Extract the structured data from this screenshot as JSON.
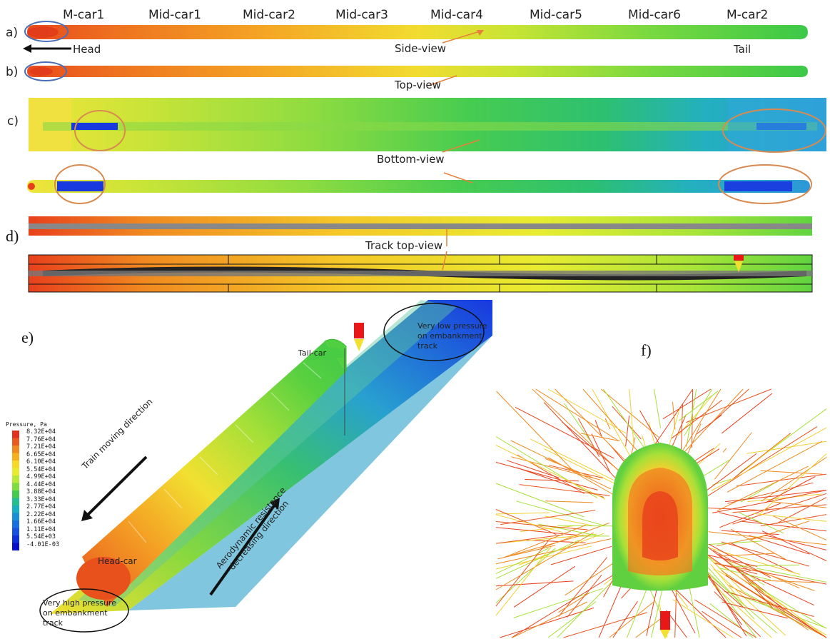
{
  "panels": {
    "a": "a)",
    "b": "b)",
    "c": "c)",
    "d": "d)",
    "e": "e)",
    "f": "f)"
  },
  "cars": [
    "M-car1",
    "Mid-car1",
    "Mid-car2",
    "Mid-car3",
    "Mid-car4",
    "Mid-car5",
    "Mid-car6",
    "M-car2"
  ],
  "labels": {
    "head": "Head",
    "tail": "Tail",
    "side_view": "Side-view",
    "top_view": "Top-view",
    "bottom_view": "Bottom-view",
    "track_top_view": "Track top-view",
    "tail_car": "Tail-car",
    "head_car": "Head-car",
    "train_moving": "Train moving direction",
    "aero_line1": "Aerodynamic resistance",
    "aero_line2": "decreasing direction",
    "low_pressure_1": "Very low pressure",
    "low_pressure_2": "on embankment",
    "low_pressure_3": "track",
    "high_pressure_1": "Very high pressure",
    "high_pressure_2": "on embankment",
    "high_pressure_3": "track"
  },
  "legend": {
    "title": "Pressure, Pa",
    "values": [
      "8.32E+04",
      "7.76E+04",
      "7.21E+04",
      "6.65E+04",
      "6.10E+04",
      "5.54E+04",
      "4.99E+04",
      "4.44E+04",
      "3.88E+04",
      "3.33E+04",
      "2.77E+04",
      "2.22E+04",
      "1.66E+04",
      "1.11E+04",
      "5.54E+03",
      "-4.01E-03"
    ],
    "colors": [
      "#e03020",
      "#e85a20",
      "#f08a20",
      "#f5b020",
      "#f5d828",
      "#e8ec30",
      "#b8e838",
      "#7fdc40",
      "#44cc50",
      "#22c090",
      "#18b0c0",
      "#1890d8",
      "#1870e0",
      "#1850e0",
      "#1030d8",
      "#0a10c8"
    ]
  },
  "colors": {
    "red": "#e8401c",
    "orange": "#f08a20",
    "yellow": "#f2e030",
    "green": "#50cc40",
    "cyan": "#30b8c8",
    "blue": "#1838e0",
    "ellipse_blue": "#4a6fb8",
    "ellipse_orange": "#d98a50",
    "arrow_orange": "#e8803a"
  }
}
